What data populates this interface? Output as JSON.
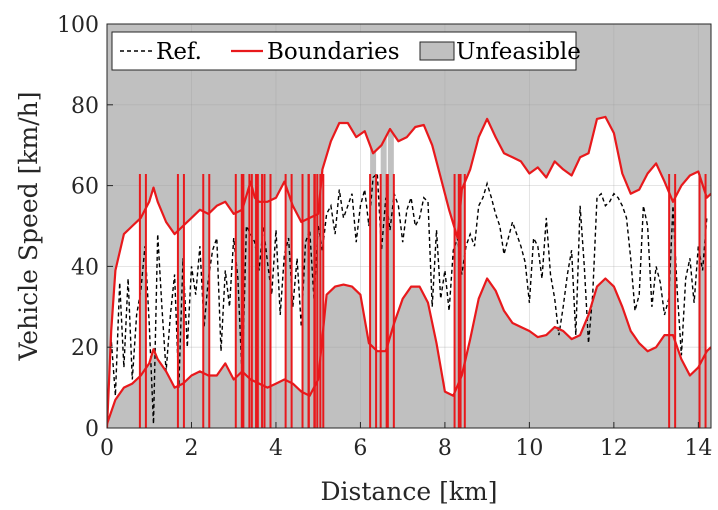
{
  "chart_data": {
    "type": "area",
    "xlabel": "Distance [km]",
    "ylabel": "Vehicle Speed [km/h]",
    "xlim": [
      0,
      14.3
    ],
    "ylim": [
      0,
      100
    ],
    "xticks": [
      0,
      2,
      4,
      6,
      8,
      10,
      12,
      14
    ],
    "yticks": [
      0,
      20,
      40,
      60,
      80,
      100
    ],
    "grid": true,
    "legend_position": "top-left",
    "legend": [
      {
        "label": "Ref.",
        "style": "dashed-black"
      },
      {
        "label": "Boundaries",
        "style": "solid-red"
      },
      {
        "label": "Unfeasible",
        "style": "gray-fill"
      }
    ],
    "colors": {
      "unfeasible": "#c0c0c0",
      "boundaries": "#e8191c",
      "reference": "#000000"
    },
    "upper_boundary": {
      "x": [
        0,
        0.1,
        0.2,
        0.4,
        0.6,
        0.8,
        1.0,
        1.1,
        1.2,
        1.4,
        1.6,
        1.8,
        2.0,
        2.2,
        2.4,
        2.6,
        2.8,
        3.0,
        3.2,
        3.4,
        3.5,
        3.6,
        3.8,
        4.0,
        4.2,
        4.4,
        4.6,
        4.8,
        5.0,
        5.1,
        5.3,
        5.5,
        5.7,
        5.9,
        6.1,
        6.3,
        6.5,
        6.7,
        6.9,
        7.1,
        7.3,
        7.5,
        7.7,
        7.9,
        8.1,
        8.3,
        8.4,
        8.6,
        8.8,
        9.0,
        9.2,
        9.4,
        9.6,
        9.8,
        10.0,
        10.2,
        10.4,
        10.6,
        10.8,
        11.0,
        11.2,
        11.4,
        11.6,
        11.8,
        12.0,
        12.2,
        12.4,
        12.6,
        12.8,
        13.0,
        13.2,
        13.4,
        13.6,
        13.8,
        14.0,
        14.2,
        14.3
      ],
      "y": [
        0,
        24,
        39,
        48,
        50,
        52,
        56,
        59.5,
        56,
        51,
        48,
        50,
        52,
        54,
        53,
        55,
        56,
        53,
        54,
        61,
        57,
        56,
        56,
        57,
        61,
        55,
        51,
        52,
        53,
        64,
        71,
        75.5,
        75.5,
        72,
        73.5,
        68,
        70,
        74,
        71,
        72,
        74.5,
        75,
        70,
        62,
        54,
        47,
        59,
        64,
        72,
        76.5,
        72,
        68,
        67,
        66,
        63,
        64.5,
        62,
        66,
        64,
        62.5,
        67,
        68,
        76.5,
        77,
        73,
        63,
        58,
        59,
        63,
        65.5,
        61,
        56,
        60,
        62.5,
        63.5,
        57,
        58
      ]
    },
    "lower_boundary": {
      "x": [
        0,
        0.2,
        0.4,
        0.6,
        0.8,
        1.0,
        1.1,
        1.2,
        1.4,
        1.5,
        1.6,
        1.8,
        2.0,
        2.2,
        2.4,
        2.6,
        2.8,
        3.0,
        3.2,
        3.4,
        3.6,
        3.8,
        4.0,
        4.2,
        4.4,
        4.6,
        4.8,
        5.0,
        5.2,
        5.4,
        5.6,
        5.8,
        6.0,
        6.2,
        6.4,
        6.6,
        6.8,
        7.0,
        7.2,
        7.4,
        7.6,
        7.8,
        8.0,
        8.2,
        8.4,
        8.6,
        8.8,
        9.0,
        9.2,
        9.4,
        9.6,
        9.8,
        10.0,
        10.2,
        10.4,
        10.6,
        10.8,
        11.0,
        11.2,
        11.4,
        11.6,
        11.8,
        12.0,
        12.2,
        12.4,
        12.6,
        12.8,
        13.0,
        13.2,
        13.4,
        13.6,
        13.8,
        14.0,
        14.2,
        14.3
      ],
      "y": [
        1,
        7,
        10,
        11,
        13,
        16,
        19.5,
        17,
        14,
        12,
        10,
        11,
        13,
        14,
        13,
        13,
        16,
        12,
        14,
        12,
        11,
        10,
        11,
        12,
        11,
        9,
        8,
        12,
        33,
        35,
        35.5,
        35,
        33,
        21,
        19,
        19,
        26,
        32,
        35,
        35,
        31,
        21,
        9,
        8,
        13,
        22,
        32,
        37,
        34,
        29,
        26,
        25,
        24,
        22.5,
        23,
        25,
        24,
        22,
        23,
        28,
        35,
        37,
        35,
        30,
        24,
        21,
        19,
        20,
        23,
        23,
        17,
        13,
        15,
        19,
        20
      ]
    },
    "unfeasible_gaps_x": [
      0.85,
      1.75,
      2.35,
      3.12,
      3.3,
      3.5,
      3.6,
      3.8,
      4.3,
      4.7,
      4.85,
      4.98,
      5.05,
      6.3,
      6.55,
      6.72,
      8.3,
      8.4,
      13.38,
      14.1
    ],
    "reference": {
      "x": [
        0,
        0.1,
        0.2,
        0.3,
        0.4,
        0.5,
        0.6,
        0.7,
        0.8,
        0.9,
        1.0,
        1.1,
        1.2,
        1.3,
        1.4,
        1.5,
        1.6,
        1.7,
        1.8,
        1.9,
        2.0,
        2.1,
        2.2,
        2.3,
        2.4,
        2.5,
        2.6,
        2.7,
        2.8,
        2.9,
        3.0,
        3.1,
        3.2,
        3.3,
        3.4,
        3.5,
        3.6,
        3.7,
        3.8,
        3.9,
        4.0,
        4.1,
        4.2,
        4.3,
        4.4,
        4.5,
        4.6,
        4.7,
        4.8,
        4.9,
        5.0,
        5.1,
        5.2,
        5.3,
        5.4,
        5.5,
        5.6,
        5.7,
        5.8,
        5.9,
        6.0,
        6.1,
        6.2,
        6.3,
        6.4,
        6.5,
        6.6,
        6.7,
        6.8,
        6.9,
        7.0,
        7.1,
        7.2,
        7.3,
        7.4,
        7.5,
        7.6,
        7.7,
        7.8,
        7.9,
        8.0,
        8.1,
        8.2,
        8.3,
        8.4,
        8.5,
        8.6,
        8.7,
        8.8,
        8.9,
        9.0,
        9.1,
        9.2,
        9.3,
        9.4,
        9.5,
        9.6,
        9.7,
        9.8,
        9.9,
        10.0,
        10.1,
        10.2,
        10.3,
        10.4,
        10.5,
        10.6,
        10.7,
        10.8,
        10.9,
        11.0,
        11.1,
        11.2,
        11.3,
        11.4,
        11.5,
        11.6,
        11.7,
        11.8,
        11.9,
        12.0,
        12.1,
        12.2,
        12.3,
        12.4,
        12.5,
        12.6,
        12.7,
        12.8,
        12.9,
        13.0,
        13.1,
        13.2,
        13.3,
        13.4,
        13.5,
        13.6,
        13.7,
        13.8,
        13.9,
        14.0,
        14.1,
        14.2
      ],
      "y": [
        2,
        22,
        8,
        36,
        15,
        37,
        12,
        28,
        34,
        45,
        26,
        1,
        48,
        30,
        14,
        28,
        38,
        10,
        42,
        20,
        40,
        33,
        45,
        25,
        37,
        44,
        47,
        19,
        39,
        30,
        47,
        37,
        12,
        50,
        48,
        46,
        39,
        50,
        41,
        33,
        49,
        28,
        43,
        47,
        30,
        42,
        25,
        46,
        49,
        32,
        50,
        44,
        53,
        55,
        48,
        59,
        52,
        55,
        58,
        46,
        55,
        59,
        50,
        62,
        63,
        44,
        57,
        49,
        58,
        55,
        46,
        54,
        57,
        50,
        52,
        57,
        56,
        30,
        49,
        32,
        39,
        29,
        44,
        47,
        38,
        45,
        48,
        45,
        55,
        57,
        60.5,
        57,
        53,
        50,
        43,
        47,
        51,
        48,
        45,
        41,
        31,
        47,
        45,
        37,
        52,
        38,
        32,
        23,
        30,
        38,
        44,
        23,
        55,
        40,
        21,
        33,
        57,
        58,
        55,
        56,
        58,
        57,
        55,
        52,
        42,
        29,
        33,
        55,
        50,
        30,
        40,
        36,
        28,
        32,
        55,
        34,
        18,
        37,
        42,
        31,
        45,
        39,
        52
      ]
    }
  }
}
